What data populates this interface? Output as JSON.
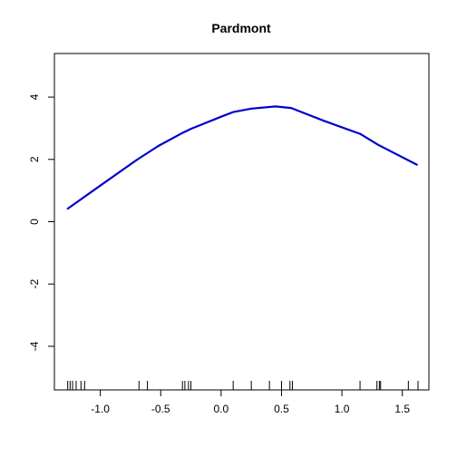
{
  "chart_data": {
    "type": "line",
    "title": "Pardmont",
    "xlabel": "",
    "ylabel": "",
    "xlim": [
      -1.38,
      1.72
    ],
    "ylim": [
      -5.4,
      5.4
    ],
    "x_ticks": [
      -1.0,
      -0.5,
      0.0,
      0.5,
      1.0,
      1.5
    ],
    "x_tick_labels": [
      "-1.0",
      "-0.5",
      "0.0",
      "0.5",
      "1.0",
      "1.5"
    ],
    "y_ticks": [
      -4,
      -2,
      0,
      2,
      4
    ],
    "y_tick_labels": [
      "-4",
      "-2",
      "0",
      "2",
      "4"
    ],
    "grid": false,
    "series": [
      {
        "color": "#0000cd",
        "x": [
          -1.27,
          -1.0,
          -0.7,
          -0.52,
          -0.33,
          -0.25,
          0.0,
          0.1,
          0.25,
          0.45,
          0.58,
          0.85,
          1.15,
          1.3,
          1.62
        ],
        "y": [
          0.42,
          1.16,
          1.98,
          2.43,
          2.83,
          2.98,
          3.37,
          3.52,
          3.63,
          3.7,
          3.65,
          3.24,
          2.82,
          2.47,
          1.83
        ]
      }
    ],
    "rug": [
      -1.27,
      -1.25,
      -1.23,
      -1.2,
      -1.16,
      -1.13,
      -0.68,
      -0.61,
      -0.32,
      -0.3,
      -0.27,
      -0.25,
      0.1,
      0.25,
      0.4,
      0.5,
      0.57,
      0.59,
      1.15,
      1.29,
      1.31,
      1.32,
      1.55,
      1.63
    ]
  }
}
